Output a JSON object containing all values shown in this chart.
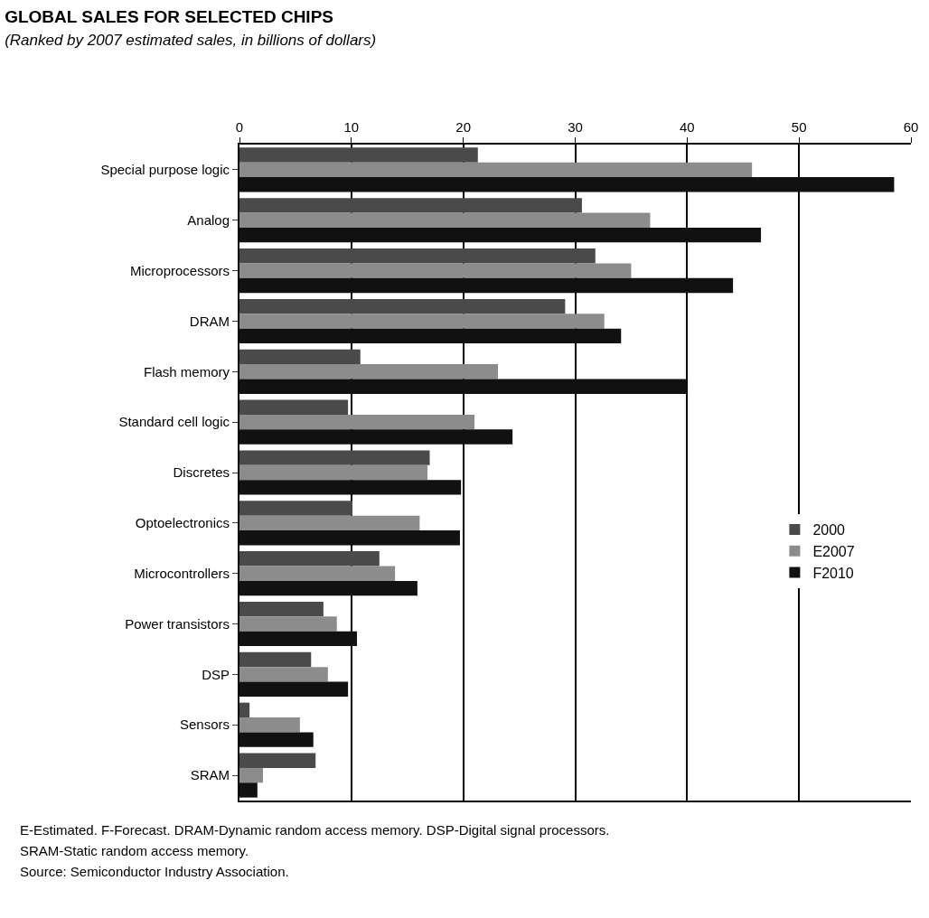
{
  "chart_data": {
    "type": "bar",
    "orientation": "horizontal",
    "title": "GLOBAL SALES FOR SELECTED CHIPS",
    "subtitle": "(Ranked by 2007 estimated sales, in billions of dollars)",
    "categories": [
      "Special purpose logic",
      "Analog",
      "Microprocessors",
      "DRAM",
      "Flash memory",
      "Standard cell logic",
      "Discretes",
      "Optoelectronics",
      "Microcontrollers",
      "Power transistors",
      "DSP",
      "Sensors",
      "SRAM"
    ],
    "series": [
      {
        "name": "2000",
        "color": "#4a4a4a",
        "values": [
          21.3,
          30.6,
          31.8,
          29.1,
          10.8,
          9.7,
          17.0,
          10.1,
          12.5,
          7.5,
          6.4,
          0.9,
          6.8
        ]
      },
      {
        "name": "E2007",
        "color": "#8c8c8c",
        "values": [
          45.8,
          36.7,
          35.0,
          32.6,
          23.1,
          21.0,
          16.8,
          16.1,
          13.9,
          8.7,
          7.9,
          5.4,
          2.1
        ]
      },
      {
        "name": "F2010",
        "color": "#111111",
        "values": [
          58.5,
          46.6,
          44.1,
          34.1,
          40.0,
          24.4,
          19.8,
          19.7,
          15.9,
          10.5,
          9.7,
          6.6,
          1.6
        ]
      }
    ],
    "xlim": [
      0,
      60
    ],
    "xticks": [
      0,
      10,
      20,
      30,
      40,
      50,
      60
    ],
    "grid": "x",
    "legend": "right",
    "annotations": [
      "E-Estimated. F-Forecast. DRAM-Dynamic random access memory. DSP-Digital signal processors.",
      "SRAM-Static random access memory.",
      "Source: Semiconductor Industry Association."
    ]
  }
}
